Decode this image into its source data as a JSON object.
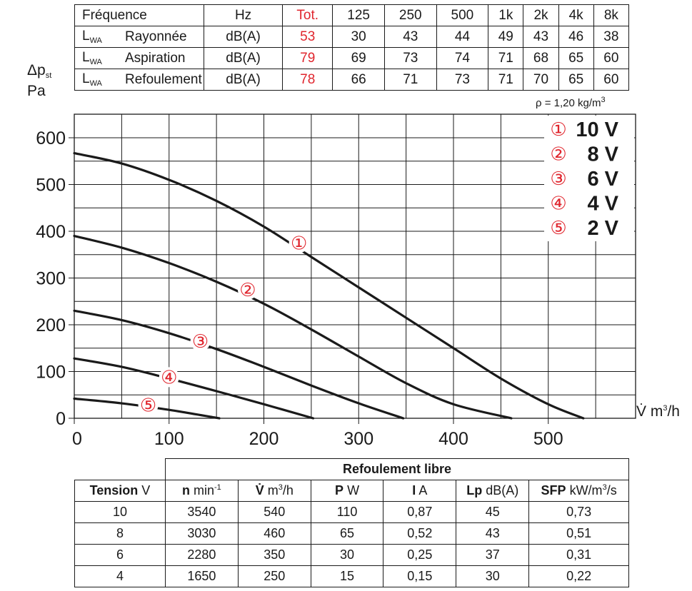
{
  "sound_table": {
    "freq_label": "Fréquence",
    "unit_hz": "Hz",
    "tot_label": "Tot.",
    "bands": [
      "125",
      "250",
      "500",
      "1k",
      "2k",
      "4k",
      "8k"
    ],
    "rows": [
      {
        "lwa": "L",
        "sub": "WA",
        "name": "Rayonnée",
        "unit": "dB(A)",
        "tot": "53",
        "values": [
          "30",
          "43",
          "44",
          "49",
          "43",
          "46",
          "38"
        ]
      },
      {
        "lwa": "L",
        "sub": "WA",
        "name": "Aspiration",
        "unit": "dB(A)",
        "tot": "79",
        "values": [
          "69",
          "73",
          "74",
          "71",
          "68",
          "65",
          "60"
        ]
      },
      {
        "lwa": "L",
        "sub": "WA",
        "name": "Refoulement",
        "unit": "dB(A)",
        "tot": "78",
        "values": [
          "66",
          "71",
          "73",
          "71",
          "70",
          "65",
          "60"
        ]
      }
    ]
  },
  "axis": {
    "ylabel_main": "Δp",
    "ylabel_sub": "st",
    "ylabel_unit": "Pa",
    "xlabel": "V̇ m",
    "xlabel_sup": "3",
    "xlabel_tail": "/h",
    "density": "ρ = 1,20 kg/m",
    "density_sup": "3"
  },
  "chart_data": {
    "type": "line",
    "title": "",
    "xlabel": "V̇ m³/h",
    "ylabel": "Δpst Pa",
    "xlim": [
      0,
      600
    ],
    "ylim": [
      0,
      600
    ],
    "xticks": [
      0,
      100,
      200,
      300,
      400,
      500
    ],
    "yticks": [
      0,
      100,
      200,
      300,
      400,
      500,
      600
    ],
    "grid": true,
    "legend_position": "top-right",
    "series": [
      {
        "name": "10 V",
        "marker": "①",
        "x": [
          0,
          50,
          100,
          150,
          200,
          250,
          300,
          350,
          400,
          450,
          500,
          537
        ],
        "y": [
          567,
          545,
          510,
          465,
          410,
          345,
          280,
          215,
          150,
          85,
          30,
          0
        ],
        "label_at": [
          237,
          375
        ]
      },
      {
        "name": "8 V",
        "marker": "②",
        "x": [
          0,
          50,
          100,
          150,
          200,
          250,
          300,
          350,
          400,
          461
        ],
        "y": [
          390,
          365,
          332,
          292,
          245,
          190,
          132,
          75,
          30,
          0
        ],
        "label_at": [
          183,
          275
        ]
      },
      {
        "name": "6 V",
        "marker": "③",
        "x": [
          0,
          50,
          100,
          150,
          200,
          250,
          300,
          347
        ],
        "y": [
          230,
          210,
          182,
          148,
          110,
          70,
          32,
          0
        ],
        "label_at": [
          133,
          165
        ]
      },
      {
        "name": "4 V",
        "marker": "④",
        "x": [
          0,
          50,
          100,
          150,
          200,
          252
        ],
        "y": [
          128,
          110,
          85,
          58,
          30,
          0
        ],
        "label_at": [
          100,
          88
        ]
      },
      {
        "name": "2 V",
        "marker": "⑤",
        "x": [
          0,
          50,
          100,
          153
        ],
        "y": [
          42,
          32,
          18,
          0
        ],
        "label_at": [
          78,
          28
        ]
      }
    ]
  },
  "legend": [
    {
      "marker": "①",
      "label": "10 V"
    },
    {
      "marker": "②",
      "label": "8 V"
    },
    {
      "marker": "③",
      "label": "6 V"
    },
    {
      "marker": "④",
      "label": "4 V"
    },
    {
      "marker": "⑤",
      "label": "2 V"
    }
  ],
  "colors": {
    "accent_red": "#e0252d",
    "ink": "#1a1a1a"
  },
  "perf_table": {
    "group_header": "Refoulement libre",
    "headers": [
      {
        "bold": "Tension",
        "unit": " V",
        "sup": ""
      },
      {
        "bold": "n",
        "unit": " min",
        "sup": "-1"
      },
      {
        "bold": "V̇",
        "unit": " m",
        "sup": "3",
        "tail": "/h"
      },
      {
        "bold": "P",
        "unit": " W",
        "sup": ""
      },
      {
        "bold": "I",
        "unit": " A",
        "sup": ""
      },
      {
        "bold": "Lp",
        "unit": " dB(A)",
        "sup": ""
      },
      {
        "bold": "SFP",
        "unit": " kW/m",
        "sup": "3",
        "tail": "/s"
      }
    ],
    "rows": [
      [
        "10",
        "3540",
        "540",
        "110",
        "0,87",
        "45",
        "0,73"
      ],
      [
        "8",
        "3030",
        "460",
        "65",
        "0,52",
        "43",
        "0,51"
      ],
      [
        "6",
        "2280",
        "350",
        "30",
        "0,25",
        "37",
        "0,31"
      ],
      [
        "4",
        "1650",
        "250",
        "15",
        "0,15",
        "30",
        "0,22"
      ]
    ]
  }
}
